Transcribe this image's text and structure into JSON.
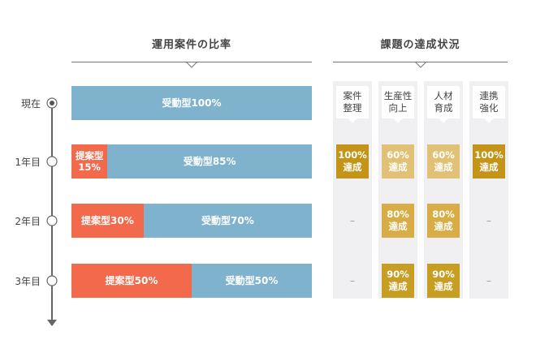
{
  "left_title": "運用案件の比率",
  "right_title": "課題の達成状況",
  "colors": {
    "passive": "#7fb2cd",
    "proposal": "#f26a4b",
    "gold_100": "#c49418",
    "gold_60": "#e0c175",
    "gold_80": "#d8ad45",
    "gold_90": "#c79d22",
    "axis": "#666666"
  },
  "timeline": [
    "現在",
    "1年目",
    "2年目",
    "3年目"
  ],
  "goals": [
    "案件\n整理",
    "生産性\n向上",
    "人材\n育成",
    "連携\n強化"
  ],
  "chart_data": {
    "type": "bar",
    "orientation": "horizontal",
    "stacked": true,
    "title": "運用案件の比率",
    "categories": [
      "現在",
      "1年目",
      "2年目",
      "3年目"
    ],
    "series": [
      {
        "name": "提案型",
        "values": [
          0,
          15,
          30,
          50
        ],
        "labels": [
          "",
          "提案型\n15%",
          "提案型30%",
          "提案型50%"
        ]
      },
      {
        "name": "受動型",
        "values": [
          100,
          85,
          70,
          50
        ],
        "labels": [
          "受動型100%",
          "受動型85%",
          "受動型70%",
          "受動型50%"
        ]
      }
    ],
    "xlim": [
      0,
      100
    ]
  },
  "status_table": {
    "title": "課題の達成状況",
    "columns": [
      "案件\n整理",
      "生産性\n向上",
      "人材\n育成",
      "連携\n強化"
    ],
    "rows": [
      {
        "period": "1年目",
        "cells": [
          "100%\n達成",
          "60%\n達成",
          "60%\n達成",
          "100%\n達成"
        ],
        "values": [
          100,
          60,
          60,
          100
        ]
      },
      {
        "period": "2年目",
        "cells": [
          "–",
          "80%\n達成",
          "80%\n達成",
          "–"
        ],
        "values": [
          null,
          80,
          80,
          null
        ]
      },
      {
        "period": "3年目",
        "cells": [
          "–",
          "90%\n達成",
          "90%\n達成",
          "–"
        ],
        "values": [
          null,
          90,
          90,
          null
        ]
      }
    ]
  }
}
